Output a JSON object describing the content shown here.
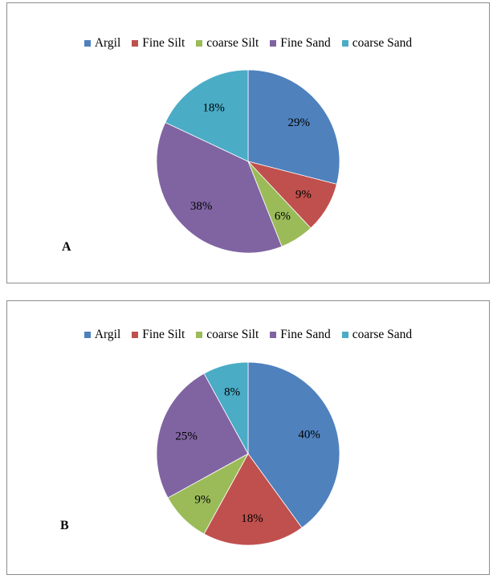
{
  "colors": {
    "argil": "#4f81bd",
    "fine_silt": "#c0504d",
    "coarse_silt": "#9bbb59",
    "fine_sand": "#8064a2",
    "coarse_sand": "#4bacc6"
  },
  "chart_data": [
    {
      "type": "pie",
      "panel_label": "A",
      "legend_placement": "top",
      "categories": [
        "Argil",
        "Fine Silt",
        "coarse Silt",
        "Fine Sand",
        "coarse Sand"
      ],
      "values": [
        29,
        9,
        6,
        38,
        18
      ],
      "labels": [
        "29%",
        "9%",
        "6%",
        "38%",
        "18%"
      ],
      "colors": [
        "#4f81bd",
        "#c0504d",
        "#9bbb59",
        "#8064a2",
        "#4bacc6"
      ]
    },
    {
      "type": "pie",
      "panel_label": "B",
      "legend_placement": "top",
      "categories": [
        "Argil",
        "Fine Silt",
        "coarse Silt",
        "Fine Sand",
        "coarse Sand"
      ],
      "values": [
        40,
        18,
        9,
        25,
        8
      ],
      "labels": [
        "40%",
        "18%",
        "9%",
        "25%",
        "8%"
      ],
      "colors": [
        "#4f81bd",
        "#c0504d",
        "#9bbb59",
        "#8064a2",
        "#4bacc6"
      ]
    }
  ]
}
